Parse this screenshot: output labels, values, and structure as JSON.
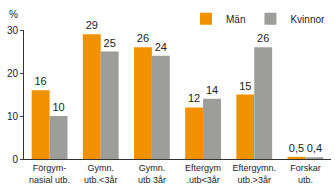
{
  "chart_data": {
    "type": "bar",
    "ylabel": "%",
    "categories": [
      "Förgym-\nnasial utb.",
      "Gymn.\nutb.<3år",
      "Gymn.\nutb 3år",
      "Eftergym\n.utb<3år",
      "Eftergymn.\nutb.>3år",
      "Forskar\nutb."
    ],
    "series": [
      {
        "name": "Män",
        "color": "#f39200",
        "values": [
          16,
          29,
          26,
          12,
          15,
          0.5
        ],
        "value_labels": [
          "16",
          "29",
          "26",
          "12",
          "15",
          "0,5"
        ]
      },
      {
        "name": "Kvinnor",
        "color": "#9d9d9c",
        "values": [
          10,
          25,
          24,
          14,
          26,
          0.4
        ],
        "value_labels": [
          "10",
          "25",
          "24",
          "14",
          "26",
          "0,4"
        ]
      }
    ],
    "ylim": [
      0,
      30
    ],
    "yticks": [
      0,
      10,
      20,
      30
    ],
    "grid": false,
    "legend": "top right",
    "data_labels": true
  }
}
